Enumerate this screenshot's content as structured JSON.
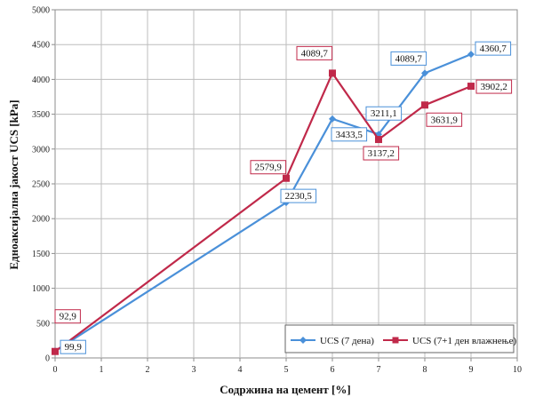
{
  "chart_data": {
    "type": "line",
    "xlabel": "Содржина на цемент [%]",
    "ylabel": "Едноаксијална јакост UCS [kPa]",
    "xlim": [
      0,
      10
    ],
    "ylim": [
      0,
      5000
    ],
    "x_ticks": [
      "0",
      "1",
      "2",
      "3",
      "4",
      "5",
      "6",
      "7",
      "8",
      "9",
      "10"
    ],
    "y_ticks": [
      "0",
      "500",
      "1000",
      "1500",
      "2000",
      "2500",
      "3000",
      "3500",
      "4000",
      "4500",
      "5000"
    ],
    "grid": true,
    "legend_position": "bottom-right",
    "series": [
      {
        "name": "UCS (7 дена)",
        "color": "#4a90d9",
        "marker": "diamond",
        "x": [
          0,
          5,
          6,
          7,
          8,
          9
        ],
        "values": [
          99.9,
          2230.5,
          3433.5,
          3211.1,
          4089.7,
          4360.7
        ],
        "labels": [
          "99,9",
          "2230,5",
          "3433,5",
          "3211,1",
          "4089,7",
          "4360,7"
        ]
      },
      {
        "name": "UCS (7+1 ден влажнење)",
        "color": "#c0294a",
        "marker": "square",
        "x": [
          0,
          5,
          6,
          7,
          8,
          9
        ],
        "values": [
          92.9,
          2579.9,
          4089.7,
          3137.2,
          3631.9,
          3902.2
        ],
        "labels": [
          "92,9",
          "2579,9",
          "4089,7",
          "3137,2",
          "3631,9",
          "3902,2"
        ]
      }
    ]
  }
}
